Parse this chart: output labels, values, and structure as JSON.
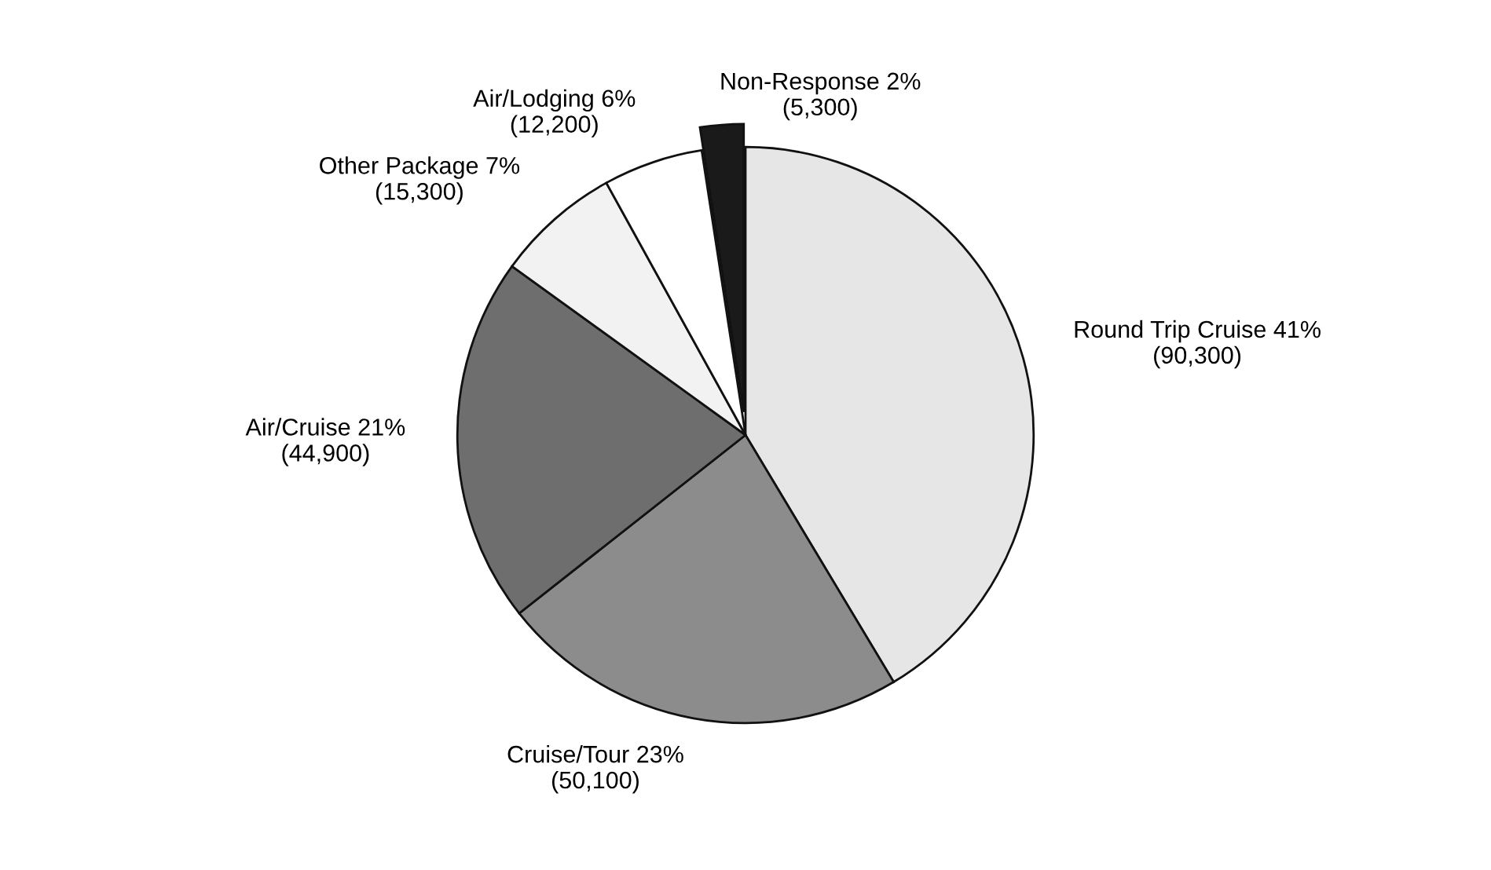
{
  "chart_data": {
    "type": "pie",
    "categories": [
      "Round Trip Cruise 41%",
      "Cruise/Tour 23%",
      "Air/Cruise 21%",
      "Other Package 7%",
      "Air/Lodging 6%",
      "Non-Response 2%"
    ],
    "values": [
      90300,
      50100,
      44900,
      15300,
      12200,
      5300
    ],
    "value_labels": [
      "(90,300)",
      "(50,100)",
      "(44,900)",
      "(15,300)",
      "(12,200)",
      "(5,300)"
    ],
    "colors": [
      "#e6e6e6",
      "#8c8c8c",
      "#6e6e6e",
      "#f2f2f2",
      "#ffffff",
      "#1a1a1a"
    ]
  }
}
